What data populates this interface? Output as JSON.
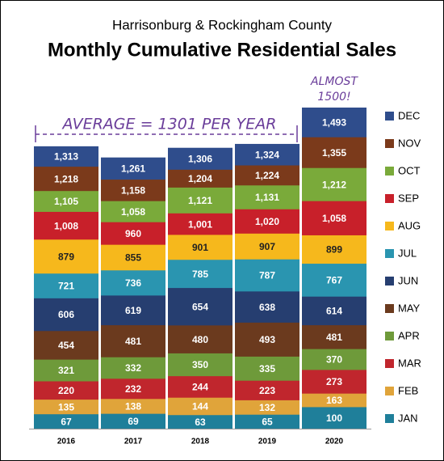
{
  "chart_data": {
    "type": "bar",
    "title": "Harrisonburg & Rockingham County",
    "subtitle": "Monthly Cumulative Residential Sales",
    "annotations": [
      "AVERAGE = 1301 PER YEAR",
      "ALMOST",
      "1500!"
    ],
    "categories": [
      "2016",
      "2017",
      "2018",
      "2019",
      "2020"
    ],
    "series": [
      {
        "name": "JAN",
        "color": "#1f7f9a",
        "values": [
          67,
          69,
          63,
          65,
          100
        ],
        "value_labels": [
          "67",
          "69",
          "63",
          "65",
          "100"
        ]
      },
      {
        "name": "FEB",
        "color": "#e0a43a",
        "values": [
          135,
          138,
          144,
          132,
          163
        ],
        "value_labels": [
          "135",
          "138",
          "144",
          "132",
          "163"
        ]
      },
      {
        "name": "MAR",
        "color": "#c0262d",
        "values": [
          220,
          232,
          244,
          223,
          273
        ],
        "value_labels": [
          "220",
          "232",
          "244",
          "223",
          "273"
        ]
      },
      {
        "name": "APR",
        "color": "#6e9a3a",
        "values": [
          321,
          332,
          350,
          335,
          370
        ],
        "value_labels": [
          "321",
          "332",
          "350",
          "335",
          "370"
        ]
      },
      {
        "name": "MAY",
        "color": "#6b3a1e",
        "values": [
          454,
          481,
          480,
          493,
          481
        ],
        "value_labels": [
          "454",
          "481",
          "480",
          "493",
          "481"
        ]
      },
      {
        "name": "JUN",
        "color": "#263e70",
        "values": [
          606,
          619,
          654,
          638,
          614
        ],
        "value_labels": [
          "606",
          "619",
          "654",
          "638",
          "614"
        ]
      },
      {
        "name": "JUL",
        "color": "#2a95b0",
        "values": [
          721,
          736,
          785,
          787,
          767
        ],
        "value_labels": [
          "721",
          "736",
          "785",
          "787",
          "767"
        ]
      },
      {
        "name": "AUG",
        "color": "#f6b81c",
        "values": [
          879,
          855,
          901,
          907,
          899
        ],
        "value_labels": [
          "879",
          "855",
          "901",
          "907",
          "899"
        ]
      },
      {
        "name": "SEP",
        "color": "#c8202a",
        "values": [
          1008,
          960,
          1001,
          1020,
          1058
        ],
        "value_labels": [
          "1,008",
          "960",
          "1,001",
          "1,020",
          "1,058"
        ]
      },
      {
        "name": "OCT",
        "color": "#7aaa3a",
        "values": [
          1105,
          1058,
          1121,
          1131,
          1212
        ],
        "value_labels": [
          "1,105",
          "1,058",
          "1,121",
          "1,131",
          "1,212"
        ]
      },
      {
        "name": "NOV",
        "color": "#7b3a1b",
        "values": [
          1218,
          1158,
          1204,
          1224,
          1355
        ],
        "value_labels": [
          "1,218",
          "1,158",
          "1,204",
          "1,224",
          "1,355"
        ]
      },
      {
        "name": "DEC",
        "color": "#2f4d8c",
        "values": [
          1313,
          1261,
          1306,
          1324,
          1493
        ],
        "value_labels": [
          "1,313",
          "1,261",
          "1,306",
          "1,324",
          "1,493"
        ]
      }
    ]
  }
}
